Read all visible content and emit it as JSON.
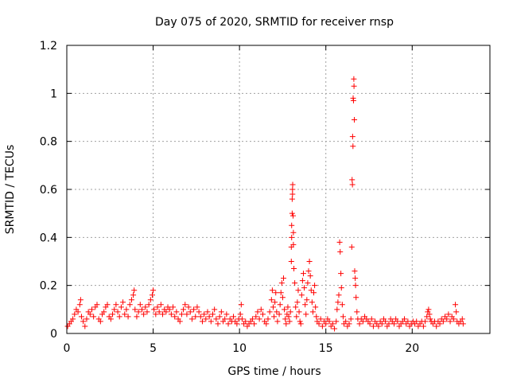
{
  "chart_data": {
    "type": "scatter",
    "title": "Day 075 of 2020, SRMTID for receiver rnsp",
    "xlabel": "GPS time / hours",
    "ylabel": "SRMTID / TECUs",
    "xlim": [
      0,
      24.5
    ],
    "ylim": [
      0,
      1.2
    ],
    "xticks": [
      0,
      5,
      10,
      15,
      20
    ],
    "yticks": [
      0,
      0.2,
      0.4,
      0.6,
      0.8,
      1,
      1.2
    ],
    "ytick_labels": [
      "0",
      "0.2",
      "0.4",
      "0.6",
      "0.8",
      "1",
      "1.2"
    ],
    "grid": true,
    "marker": "+",
    "series": [
      {
        "name": "SRMTID",
        "color": "#ff0000",
        "points": [
          [
            0.05,
            0.03
          ],
          [
            0.15,
            0.04
          ],
          [
            0.25,
            0.05
          ],
          [
            0.35,
            0.06
          ],
          [
            0.45,
            0.08
          ],
          [
            0.55,
            0.1
          ],
          [
            0.65,
            0.09
          ],
          [
            0.75,
            0.12
          ],
          [
            0.8,
            0.14
          ],
          [
            0.85,
            0.07
          ],
          [
            0.95,
            0.05
          ],
          [
            1.05,
            0.03
          ],
          [
            1.15,
            0.06
          ],
          [
            1.25,
            0.09
          ],
          [
            1.35,
            0.08
          ],
          [
            1.45,
            0.1
          ],
          [
            1.55,
            0.07
          ],
          [
            1.65,
            0.11
          ],
          [
            1.75,
            0.12
          ],
          [
            1.85,
            0.06
          ],
          [
            1.95,
            0.05
          ],
          [
            2.05,
            0.08
          ],
          [
            2.15,
            0.09
          ],
          [
            2.25,
            0.11
          ],
          [
            2.35,
            0.12
          ],
          [
            2.45,
            0.07
          ],
          [
            2.55,
            0.06
          ],
          [
            2.65,
            0.08
          ],
          [
            2.75,
            0.1
          ],
          [
            2.85,
            0.12
          ],
          [
            2.95,
            0.09
          ],
          [
            3.05,
            0.07
          ],
          [
            3.15,
            0.11
          ],
          [
            3.25,
            0.13
          ],
          [
            3.35,
            0.08
          ],
          [
            3.45,
            0.1
          ],
          [
            3.55,
            0.07
          ],
          [
            3.65,
            0.12
          ],
          [
            3.75,
            0.14
          ],
          [
            3.85,
            0.16
          ],
          [
            3.9,
            0.18
          ],
          [
            3.95,
            0.1
          ],
          [
            4.05,
            0.07
          ],
          [
            4.15,
            0.09
          ],
          [
            4.25,
            0.12
          ],
          [
            4.35,
            0.1
          ],
          [
            4.45,
            0.08
          ],
          [
            4.55,
            0.11
          ],
          [
            4.65,
            0.09
          ],
          [
            4.75,
            0.12
          ],
          [
            4.85,
            0.14
          ],
          [
            4.95,
            0.16
          ],
          [
            5.0,
            0.18
          ],
          [
            5.05,
            0.1
          ],
          [
            5.15,
            0.08
          ],
          [
            5.25,
            0.11
          ],
          [
            5.35,
            0.09
          ],
          [
            5.45,
            0.12
          ],
          [
            5.55,
            0.08
          ],
          [
            5.65,
            0.1
          ],
          [
            5.75,
            0.09
          ],
          [
            5.85,
            0.11
          ],
          [
            5.95,
            0.1
          ],
          [
            6.05,
            0.08
          ],
          [
            6.15,
            0.11
          ],
          [
            6.25,
            0.07
          ],
          [
            6.35,
            0.09
          ],
          [
            6.45,
            0.06
          ],
          [
            6.55,
            0.05
          ],
          [
            6.65,
            0.08
          ],
          [
            6.75,
            0.1
          ],
          [
            6.85,
            0.12
          ],
          [
            6.95,
            0.08
          ],
          [
            7.05,
            0.11
          ],
          [
            7.15,
            0.09
          ],
          [
            7.25,
            0.06
          ],
          [
            7.35,
            0.1
          ],
          [
            7.45,
            0.07
          ],
          [
            7.55,
            0.11
          ],
          [
            7.65,
            0.09
          ],
          [
            7.75,
            0.07
          ],
          [
            7.85,
            0.05
          ],
          [
            7.95,
            0.08
          ],
          [
            8.05,
            0.06
          ],
          [
            8.15,
            0.09
          ],
          [
            8.25,
            0.07
          ],
          [
            8.35,
            0.05
          ],
          [
            8.45,
            0.08
          ],
          [
            8.55,
            0.1
          ],
          [
            8.65,
            0.06
          ],
          [
            8.75,
            0.04
          ],
          [
            8.85,
            0.07
          ],
          [
            8.95,
            0.09
          ],
          [
            9.05,
            0.05
          ],
          [
            9.15,
            0.06
          ],
          [
            9.25,
            0.08
          ],
          [
            9.35,
            0.04
          ],
          [
            9.45,
            0.06
          ],
          [
            9.55,
            0.05
          ],
          [
            9.65,
            0.07
          ],
          [
            9.75,
            0.05
          ],
          [
            9.85,
            0.04
          ],
          [
            9.95,
            0.06
          ],
          [
            10.05,
            0.08
          ],
          [
            10.1,
            0.12
          ],
          [
            10.15,
            0.06
          ],
          [
            10.25,
            0.04
          ],
          [
            10.35,
            0.05
          ],
          [
            10.45,
            0.03
          ],
          [
            10.55,
            0.04
          ],
          [
            10.65,
            0.05
          ],
          [
            10.75,
            0.06
          ],
          [
            10.85,
            0.04
          ],
          [
            10.95,
            0.07
          ],
          [
            11.05,
            0.09
          ],
          [
            11.15,
            0.06
          ],
          [
            11.25,
            0.1
          ],
          [
            11.35,
            0.08
          ],
          [
            11.45,
            0.05
          ],
          [
            11.55,
            0.04
          ],
          [
            11.65,
            0.06
          ],
          [
            11.75,
            0.09
          ],
          [
            11.85,
            0.14
          ],
          [
            11.9,
            0.18
          ],
          [
            11.95,
            0.11
          ],
          [
            12.0,
            0.07
          ],
          [
            12.05,
            0.13
          ],
          [
            12.1,
            0.17
          ],
          [
            12.15,
            0.09
          ],
          [
            12.2,
            0.05
          ],
          [
            12.3,
            0.08
          ],
          [
            12.35,
            0.12
          ],
          [
            12.4,
            0.17
          ],
          [
            12.45,
            0.21
          ],
          [
            12.5,
            0.15
          ],
          [
            12.55,
            0.23
          ],
          [
            12.6,
            0.1
          ],
          [
            12.65,
            0.06
          ],
          [
            12.7,
            0.04
          ],
          [
            12.75,
            0.08
          ],
          [
            12.8,
            0.11
          ],
          [
            12.85,
            0.07
          ],
          [
            12.9,
            0.05
          ],
          [
            12.95,
            0.09
          ],
          [
            13.0,
            0.3
          ],
          [
            13.0,
            0.36
          ],
          [
            13.02,
            0.4
          ],
          [
            13.02,
            0.45
          ],
          [
            13.05,
            0.5
          ],
          [
            13.05,
            0.56
          ],
          [
            13.07,
            0.58
          ],
          [
            13.07,
            0.6
          ],
          [
            13.08,
            0.62
          ],
          [
            13.1,
            0.49
          ],
          [
            13.12,
            0.42
          ],
          [
            13.12,
            0.37
          ],
          [
            13.15,
            0.27
          ],
          [
            13.2,
            0.21
          ],
          [
            13.25,
            0.11
          ],
          [
            13.3,
            0.07
          ],
          [
            13.35,
            0.13
          ],
          [
            13.4,
            0.18
          ],
          [
            13.45,
            0.09
          ],
          [
            13.5,
            0.05
          ],
          [
            13.55,
            0.04
          ],
          [
            13.6,
            0.16
          ],
          [
            13.65,
            0.22
          ],
          [
            13.7,
            0.25
          ],
          [
            13.75,
            0.19
          ],
          [
            13.8,
            0.12
          ],
          [
            13.85,
            0.08
          ],
          [
            13.9,
            0.14
          ],
          [
            13.95,
            0.21
          ],
          [
            14.0,
            0.26
          ],
          [
            14.05,
            0.3
          ],
          [
            14.1,
            0.24
          ],
          [
            14.15,
            0.18
          ],
          [
            14.2,
            0.13
          ],
          [
            14.25,
            0.09
          ],
          [
            14.3,
            0.17
          ],
          [
            14.35,
            0.2
          ],
          [
            14.4,
            0.11
          ],
          [
            14.45,
            0.07
          ],
          [
            14.5,
            0.05
          ],
          [
            14.6,
            0.04
          ],
          [
            14.7,
            0.06
          ],
          [
            14.8,
            0.03
          ],
          [
            14.9,
            0.05
          ],
          [
            15.0,
            0.04
          ],
          [
            15.1,
            0.06
          ],
          [
            15.2,
            0.05
          ],
          [
            15.3,
            0.03
          ],
          [
            15.4,
            0.04
          ],
          [
            15.5,
            0.02
          ],
          [
            15.6,
            0.05
          ],
          [
            15.65,
            0.1
          ],
          [
            15.7,
            0.13
          ],
          [
            15.75,
            0.16
          ],
          [
            15.8,
            0.38
          ],
          [
            15.83,
            0.34
          ],
          [
            15.87,
            0.25
          ],
          [
            15.9,
            0.19
          ],
          [
            15.95,
            0.12
          ],
          [
            16.0,
            0.07
          ],
          [
            16.05,
            0.04
          ],
          [
            16.15,
            0.05
          ],
          [
            16.25,
            0.03
          ],
          [
            16.35,
            0.04
          ],
          [
            16.45,
            0.06
          ],
          [
            16.5,
            0.36
          ],
          [
            16.52,
            0.64
          ],
          [
            16.54,
            0.62
          ],
          [
            16.55,
            0.82
          ],
          [
            16.57,
            0.78
          ],
          [
            16.58,
            0.98
          ],
          [
            16.6,
            0.97
          ],
          [
            16.62,
            1.06
          ],
          [
            16.63,
            1.03
          ],
          [
            16.65,
            0.89
          ],
          [
            16.67,
            0.26
          ],
          [
            16.7,
            0.23
          ],
          [
            16.72,
            0.2
          ],
          [
            16.75,
            0.15
          ],
          [
            16.8,
            0.09
          ],
          [
            16.85,
            0.06
          ],
          [
            16.95,
            0.04
          ],
          [
            17.05,
            0.06
          ],
          [
            17.15,
            0.05
          ],
          [
            17.25,
            0.07
          ],
          [
            17.35,
            0.06
          ],
          [
            17.45,
            0.05
          ],
          [
            17.55,
            0.04
          ],
          [
            17.65,
            0.06
          ],
          [
            17.75,
            0.03
          ],
          [
            17.85,
            0.05
          ],
          [
            17.95,
            0.04
          ],
          [
            18.05,
            0.03
          ],
          [
            18.15,
            0.05
          ],
          [
            18.25,
            0.04
          ],
          [
            18.35,
            0.06
          ],
          [
            18.45,
            0.05
          ],
          [
            18.55,
            0.03
          ],
          [
            18.65,
            0.04
          ],
          [
            18.75,
            0.06
          ],
          [
            18.85,
            0.05
          ],
          [
            18.95,
            0.04
          ],
          [
            19.05,
            0.06
          ],
          [
            19.15,
            0.05
          ],
          [
            19.25,
            0.03
          ],
          [
            19.35,
            0.04
          ],
          [
            19.45,
            0.05
          ],
          [
            19.55,
            0.06
          ],
          [
            19.65,
            0.04
          ],
          [
            19.75,
            0.05
          ],
          [
            19.85,
            0.03
          ],
          [
            19.95,
            0.04
          ],
          [
            20.05,
            0.05
          ],
          [
            20.15,
            0.04
          ],
          [
            20.25,
            0.05
          ],
          [
            20.35,
            0.03
          ],
          [
            20.45,
            0.04
          ],
          [
            20.55,
            0.05
          ],
          [
            20.65,
            0.03
          ],
          [
            20.75,
            0.05
          ],
          [
            20.85,
            0.07
          ],
          [
            20.9,
            0.09
          ],
          [
            20.95,
            0.1
          ],
          [
            21.0,
            0.08
          ],
          [
            21.05,
            0.06
          ],
          [
            21.1,
            0.05
          ],
          [
            21.2,
            0.04
          ],
          [
            21.3,
            0.05
          ],
          [
            21.4,
            0.03
          ],
          [
            21.5,
            0.05
          ],
          [
            21.6,
            0.04
          ],
          [
            21.7,
            0.06
          ],
          [
            21.8,
            0.05
          ],
          [
            21.9,
            0.07
          ],
          [
            22.0,
            0.06
          ],
          [
            22.1,
            0.08
          ],
          [
            22.2,
            0.05
          ],
          [
            22.3,
            0.07
          ],
          [
            22.4,
            0.06
          ],
          [
            22.5,
            0.12
          ],
          [
            22.55,
            0.09
          ],
          [
            22.6,
            0.05
          ],
          [
            22.7,
            0.04
          ],
          [
            22.8,
            0.05
          ],
          [
            22.9,
            0.06
          ],
          [
            22.95,
            0.04
          ]
        ]
      }
    ]
  }
}
